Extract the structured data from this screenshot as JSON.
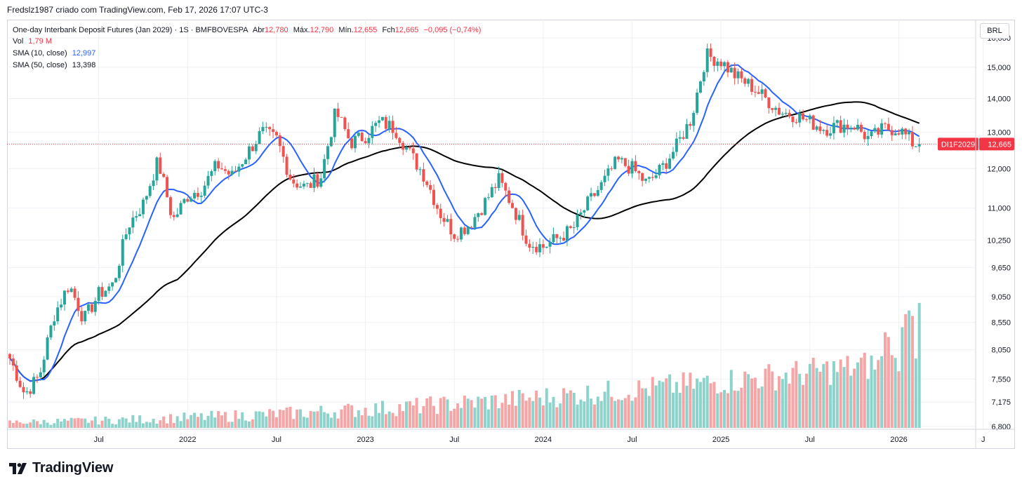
{
  "caption": "Fredslz1987 criado com TradingView.com, Feb 17, 2026 17:07 UTC-3",
  "legend": {
    "title": "One-day Interbank Deposit Futures (Jan 2029) · 1S · BMFBOVESPA",
    "open_label": "Abr",
    "open": "12,780",
    "high_label": "Máx.",
    "high": "12,790",
    "low_label": "Mín.",
    "low": "12,655",
    "close_label": "Fch",
    "close": "12,665",
    "change": "−0,095 (−0,74%)",
    "vol_label": "Vol",
    "vol_value": "1,79 M",
    "sma10_label": "SMA (10, close)",
    "sma10_value": "12,997",
    "sma50_label": "SMA (50, close)",
    "sma50_value": "13,398"
  },
  "currency_button": "BRL",
  "symbol_tag": "DI1F2029",
  "last_price_tag": "12,665",
  "brand": "TradingView",
  "colors": {
    "up": "#26a69a",
    "down": "#ef5350",
    "sma10": "#2962ff",
    "sma50": "#000000",
    "vol_up": "#8ed3cb",
    "vol_down": "#f5a5a5"
  },
  "chart_data": {
    "type": "candlestick",
    "title": "One-day Interbank Deposit Futures (Jan 2029) · 1S · BMFBOVESPA",
    "interval": "1 week",
    "y_axis_ticks": [
      "16,000",
      "15,000",
      "14,000",
      "13,000",
      "12,000",
      "11,000",
      "10,250",
      "9,650",
      "9,050",
      "8,550",
      "8,050",
      "7,550",
      "7,175",
      "6,800"
    ],
    "y_axis_scale": "log",
    "x_axis_ticks": [
      "Jul",
      "2022",
      "Jul",
      "2023",
      "Jul",
      "2024",
      "Jul",
      "2025",
      "Jul",
      "2026",
      "J"
    ],
    "x_range": [
      "2021-01",
      "2026-06"
    ],
    "price_range": [
      6.8,
      16.4
    ],
    "last_price": 12.665,
    "approx_close_path": [
      {
        "t": "2021-01",
        "close": 7.9
      },
      {
        "t": "2021-02",
        "close": 7.3
      },
      {
        "t": "2021-03",
        "close": 7.6
      },
      {
        "t": "2021-04",
        "close": 8.7
      },
      {
        "t": "2021-05",
        "close": 9.3
      },
      {
        "t": "2021-06",
        "close": 8.6
      },
      {
        "t": "2021-07",
        "close": 9.1
      },
      {
        "t": "2021-08",
        "close": 9.3
      },
      {
        "t": "2021-09",
        "close": 10.6
      },
      {
        "t": "2021-10",
        "close": 11.1
      },
      {
        "t": "2021-11",
        "close": 12.2
      },
      {
        "t": "2021-12",
        "close": 10.7
      },
      {
        "t": "2022-01",
        "close": 11.3
      },
      {
        "t": "2022-02",
        "close": 11.5
      },
      {
        "t": "2022-03",
        "close": 12.1
      },
      {
        "t": "2022-04",
        "close": 11.8
      },
      {
        "t": "2022-05",
        "close": 12.4
      },
      {
        "t": "2022-06",
        "close": 13.0
      },
      {
        "t": "2022-07",
        "close": 12.8
      },
      {
        "t": "2022-08",
        "close": 11.7
      },
      {
        "t": "2022-09",
        "close": 11.5
      },
      {
        "t": "2022-10",
        "close": 11.8
      },
      {
        "t": "2022-11",
        "close": 13.6
      },
      {
        "t": "2022-12",
        "close": 12.7
      },
      {
        "t": "2023-01",
        "close": 12.9
      },
      {
        "t": "2023-02",
        "close": 13.3
      },
      {
        "t": "2023-03",
        "close": 13.1
      },
      {
        "t": "2023-04",
        "close": 12.4
      },
      {
        "t": "2023-05",
        "close": 11.8
      },
      {
        "t": "2023-06",
        "close": 10.9
      },
      {
        "t": "2023-07",
        "close": 10.4
      },
      {
        "t": "2023-08",
        "close": 10.6
      },
      {
        "t": "2023-09",
        "close": 11.1
      },
      {
        "t": "2023-10",
        "close": 11.7
      },
      {
        "t": "2023-11",
        "close": 11.0
      },
      {
        "t": "2023-12",
        "close": 10.2
      },
      {
        "t": "2024-01",
        "close": 10.1
      },
      {
        "t": "2024-02",
        "close": 10.3
      },
      {
        "t": "2024-03",
        "close": 10.5
      },
      {
        "t": "2024-04",
        "close": 11.1
      },
      {
        "t": "2024-05",
        "close": 11.6
      },
      {
        "t": "2024-06",
        "close": 12.2
      },
      {
        "t": "2024-07",
        "close": 12.0
      },
      {
        "t": "2024-08",
        "close": 11.6
      },
      {
        "t": "2024-09",
        "close": 12.0
      },
      {
        "t": "2024-10",
        "close": 12.6
      },
      {
        "t": "2024-11",
        "close": 13.4
      },
      {
        "t": "2024-12",
        "close": 15.4
      },
      {
        "t": "2025-01",
        "close": 15.2
      },
      {
        "t": "2025-02",
        "close": 14.7
      },
      {
        "t": "2025-03",
        "close": 14.4
      },
      {
        "t": "2025-04",
        "close": 14.0
      },
      {
        "t": "2025-05",
        "close": 13.6
      },
      {
        "t": "2025-06",
        "close": 13.5
      },
      {
        "t": "2025-07",
        "close": 13.3
      },
      {
        "t": "2025-08",
        "close": 13.1
      },
      {
        "t": "2025-09",
        "close": 13.2
      },
      {
        "t": "2025-10",
        "close": 13.2
      },
      {
        "t": "2025-11",
        "close": 12.8
      },
      {
        "t": "2025-12",
        "close": 13.1
      },
      {
        "t": "2026-01",
        "close": 13.1
      },
      {
        "t": "2026-02",
        "close": 12.665
      }
    ],
    "series": [
      {
        "name": "SMA (10, close)",
        "last": 12.997
      },
      {
        "name": "SMA (50, close)",
        "last": 13.398
      },
      {
        "name": "Vol",
        "last": "1,79 M"
      }
    ]
  }
}
